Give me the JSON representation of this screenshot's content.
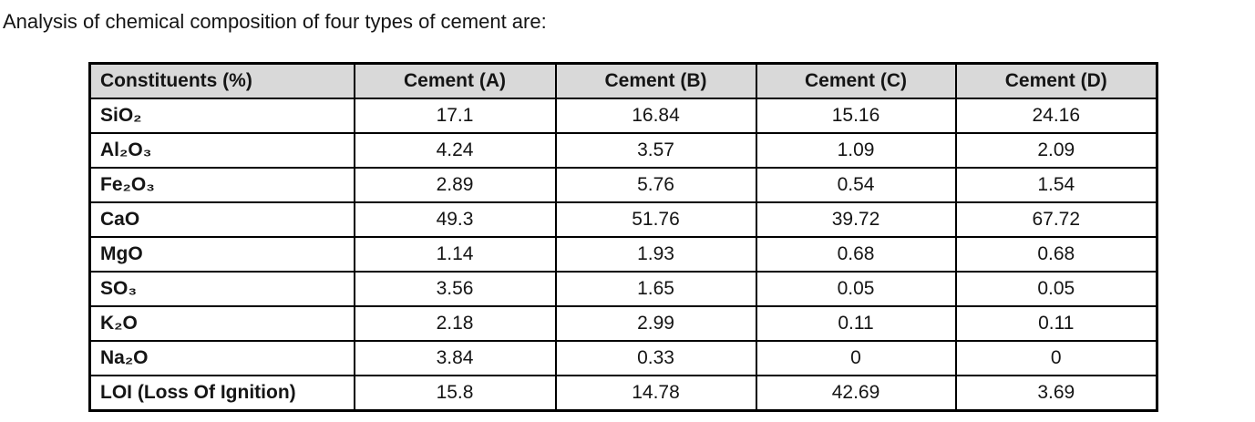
{
  "page": {
    "title": "Analysis of chemical composition of four types of cement are:"
  },
  "table": {
    "headers": [
      "Constituents (%)",
      "Cement (A)",
      "Cement (B)",
      "Cement (C)",
      "Cement (D)"
    ],
    "rows": [
      {
        "constituent": "SiO₂",
        "values": [
          "17.1",
          "16.84",
          "15.16",
          "24.16"
        ]
      },
      {
        "constituent": "Al₂O₃",
        "values": [
          "4.24",
          "3.57",
          "1.09",
          "2.09"
        ]
      },
      {
        "constituent": "Fe₂O₃",
        "values": [
          "2.89",
          "5.76",
          "0.54",
          "1.54"
        ]
      },
      {
        "constituent": "CaO",
        "values": [
          "49.3",
          "51.76",
          "39.72",
          "67.72"
        ]
      },
      {
        "constituent": "MgO",
        "values": [
          "1.14",
          "1.93",
          "0.68",
          "0.68"
        ]
      },
      {
        "constituent": "SO₃",
        "values": [
          "3.56",
          "1.65",
          "0.05",
          "0.05"
        ]
      },
      {
        "constituent": "K₂O",
        "values": [
          "2.18",
          "2.99",
          "0.11",
          "0.11"
        ]
      },
      {
        "constituent": "Na₂O",
        "values": [
          "3.84",
          "0.33",
          "0",
          "0"
        ]
      },
      {
        "constituent": "LOI (Loss Of Ignition)",
        "values": [
          "15.8",
          "14.78",
          "42.69",
          "3.69"
        ]
      }
    ],
    "colors": {
      "header_bg": "#d9d9d9",
      "border": "#000000",
      "text": "#151515"
    }
  }
}
